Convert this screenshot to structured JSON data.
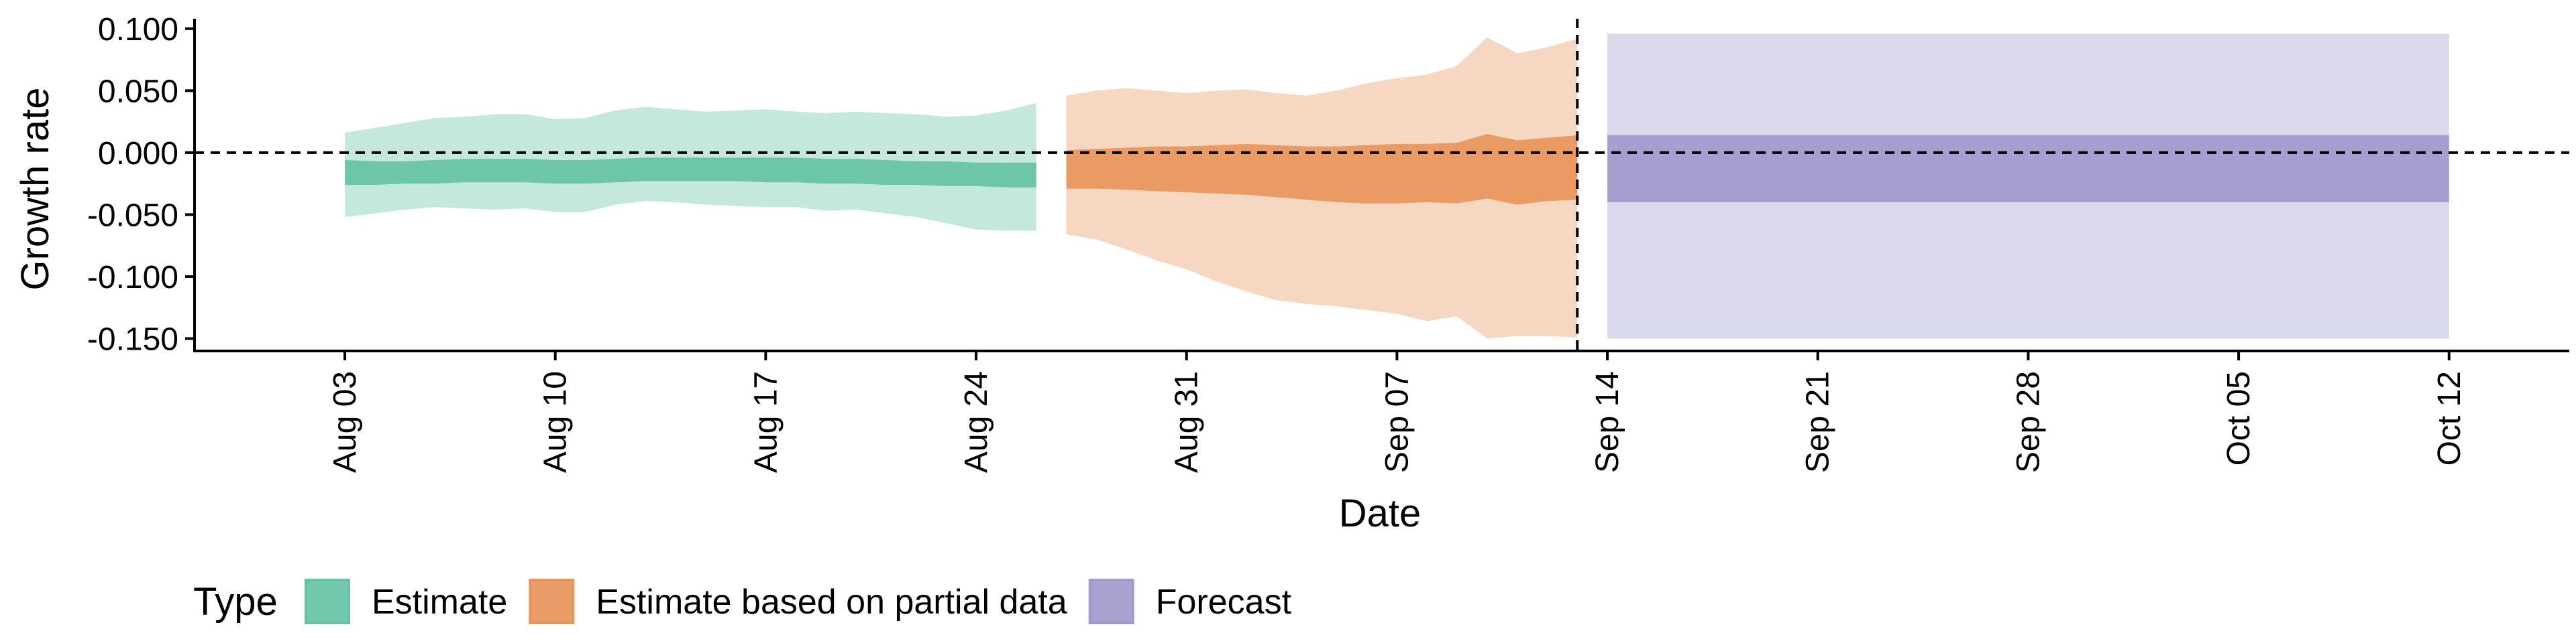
{
  "chart_data": {
    "type": "area",
    "xlabel": "Date",
    "ylabel": "Growth rate",
    "x_type": "date",
    "xlim": [
      "2021-07-29",
      "2021-10-16"
    ],
    "ylim": [
      -0.16,
      0.108
    ],
    "y_ticks": [
      0.1,
      0.05,
      0.0,
      -0.05,
      -0.1,
      -0.15
    ],
    "y_tick_labels": [
      "0.100",
      "0.050",
      "0.000",
      "-0.050",
      "-0.100",
      "-0.150"
    ],
    "x_ticks": [
      "2021-08-03",
      "2021-08-10",
      "2021-08-17",
      "2021-08-24",
      "2021-08-31",
      "2021-09-07",
      "2021-09-14",
      "2021-09-21",
      "2021-09-28",
      "2021-10-05",
      "2021-10-12"
    ],
    "x_tick_labels": [
      "Aug 03",
      "Aug 10",
      "Aug 17",
      "Aug 24",
      "Aug 31",
      "Sep 07",
      "Sep 14",
      "Sep 21",
      "Sep 28",
      "Oct 05",
      "Oct 12"
    ],
    "reference_lines": {
      "horizontal_y": 0.0,
      "vertical_date": "2021-09-13",
      "style": "dashed"
    },
    "grid": false,
    "legend": {
      "title": "Type",
      "position": "bottom-left",
      "entries": [
        {
          "label": "Estimate",
          "color": "#66c2a5"
        },
        {
          "label": "Estimate based on partial data",
          "color": "#e8955b"
        },
        {
          "label": "Forecast",
          "color": "#9f9acb"
        }
      ]
    },
    "series": [
      {
        "name": "Estimate",
        "color": "#66c2a5",
        "x": [
          "2021-08-03",
          "2021-08-04",
          "2021-08-05",
          "2021-08-06",
          "2021-08-07",
          "2021-08-08",
          "2021-08-09",
          "2021-08-10",
          "2021-08-11",
          "2021-08-12",
          "2021-08-13",
          "2021-08-14",
          "2021-08-15",
          "2021-08-16",
          "2021-08-17",
          "2021-08-18",
          "2021-08-19",
          "2021-08-20",
          "2021-08-21",
          "2021-08-22",
          "2021-08-23",
          "2021-08-24",
          "2021-08-25",
          "2021-08-26"
        ],
        "outer_upper": [
          0.016,
          0.02,
          0.024,
          0.028,
          0.029,
          0.031,
          0.031,
          0.027,
          0.028,
          0.034,
          0.037,
          0.035,
          0.033,
          0.034,
          0.035,
          0.033,
          0.032,
          0.033,
          0.032,
          0.031,
          0.029,
          0.03,
          0.034,
          0.04
        ],
        "outer_lower": [
          -0.052,
          -0.049,
          -0.046,
          -0.044,
          -0.045,
          -0.046,
          -0.045,
          -0.048,
          -0.048,
          -0.042,
          -0.039,
          -0.04,
          -0.042,
          -0.043,
          -0.044,
          -0.044,
          -0.047,
          -0.046,
          -0.049,
          -0.052,
          -0.057,
          -0.062,
          -0.063,
          -0.063
        ],
        "inner_upper": [
          -0.006,
          -0.007,
          -0.007,
          -0.006,
          -0.005,
          -0.005,
          -0.005,
          -0.006,
          -0.006,
          -0.005,
          -0.004,
          -0.004,
          -0.004,
          -0.004,
          -0.004,
          -0.004,
          -0.005,
          -0.005,
          -0.006,
          -0.007,
          -0.007,
          -0.008,
          -0.008,
          -0.008
        ],
        "inner_lower": [
          -0.026,
          -0.026,
          -0.025,
          -0.025,
          -0.024,
          -0.024,
          -0.024,
          -0.025,
          -0.025,
          -0.024,
          -0.023,
          -0.023,
          -0.023,
          -0.023,
          -0.024,
          -0.024,
          -0.025,
          -0.025,
          -0.026,
          -0.026,
          -0.027,
          -0.027,
          -0.028,
          -0.028
        ]
      },
      {
        "name": "Estimate based on partial data",
        "color": "#e8955b",
        "x": [
          "2021-08-27",
          "2021-08-28",
          "2021-08-29",
          "2021-08-30",
          "2021-08-31",
          "2021-09-01",
          "2021-09-02",
          "2021-09-03",
          "2021-09-04",
          "2021-09-05",
          "2021-09-06",
          "2021-09-07",
          "2021-09-08",
          "2021-09-09",
          "2021-09-10",
          "2021-09-11",
          "2021-09-12",
          "2021-09-13"
        ],
        "outer_upper": [
          0.046,
          0.05,
          0.052,
          0.05,
          0.048,
          0.05,
          0.051,
          0.048,
          0.046,
          0.05,
          0.056,
          0.06,
          0.063,
          0.07,
          0.093,
          0.08,
          0.085,
          0.092
        ],
        "outer_lower": [
          -0.066,
          -0.07,
          -0.078,
          -0.087,
          -0.094,
          -0.104,
          -0.112,
          -0.119,
          -0.122,
          -0.124,
          -0.127,
          -0.13,
          -0.136,
          -0.132,
          -0.15,
          -0.148,
          -0.148,
          -0.149
        ],
        "inner_upper": [
          0.002,
          0.003,
          0.004,
          0.005,
          0.005,
          0.006,
          0.007,
          0.006,
          0.005,
          0.005,
          0.006,
          0.007,
          0.007,
          0.008,
          0.015,
          0.01,
          0.012,
          0.014
        ],
        "inner_lower": [
          -0.029,
          -0.029,
          -0.03,
          -0.031,
          -0.032,
          -0.033,
          -0.034,
          -0.036,
          -0.038,
          -0.04,
          -0.041,
          -0.041,
          -0.04,
          -0.041,
          -0.037,
          -0.042,
          -0.039,
          -0.038
        ]
      },
      {
        "name": "Forecast",
        "color": "#9f9acb",
        "x": [
          "2021-09-14",
          "2021-10-12"
        ],
        "outer_upper": [
          0.096,
          0.096
        ],
        "outer_lower": [
          -0.15,
          -0.15
        ],
        "inner_upper": [
          0.014,
          0.014
        ],
        "inner_lower": [
          -0.04,
          -0.04
        ]
      }
    ]
  }
}
